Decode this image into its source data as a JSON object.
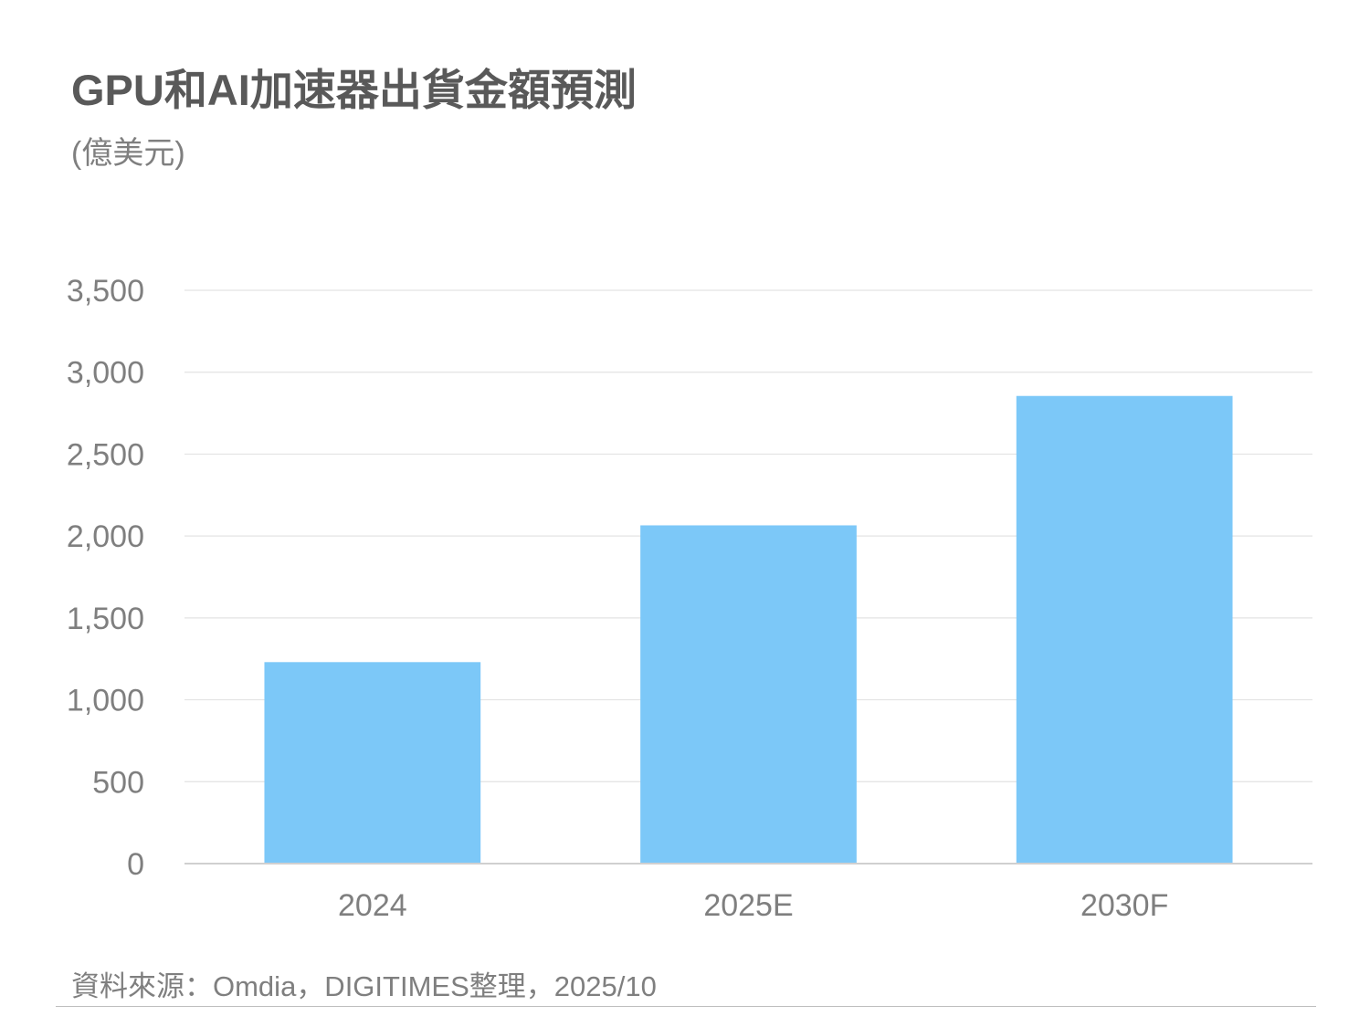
{
  "header": {
    "title": "GPU和AI加速器出貨金額預測",
    "unit": "(億美元)"
  },
  "footer": {
    "source": "資料來源：Omdia，DIGITIMES整理，2025/10"
  },
  "colors": {
    "bar": "#7cc8f8",
    "grid": "#e3e3e3",
    "axis": "#d0d0d0",
    "text": "#595959"
  },
  "chart_data": {
    "type": "bar",
    "title": "GPU和AI加速器出貨金額預測",
    "subtitle": "(億美元)",
    "xlabel": "",
    "ylabel": "",
    "categories": [
      "2024",
      "2025E",
      "2030F"
    ],
    "values": [
      1230,
      2065,
      2855
    ],
    "ylim": [
      0,
      3500
    ],
    "y_ticks": [
      0,
      500,
      1000,
      1500,
      2000,
      2500,
      3000,
      3500
    ],
    "y_tick_labels": [
      "0",
      "500",
      "1,000",
      "1,500",
      "2,000",
      "2,500",
      "3,000",
      "3,500"
    ],
    "grid": true,
    "legend": "none"
  }
}
